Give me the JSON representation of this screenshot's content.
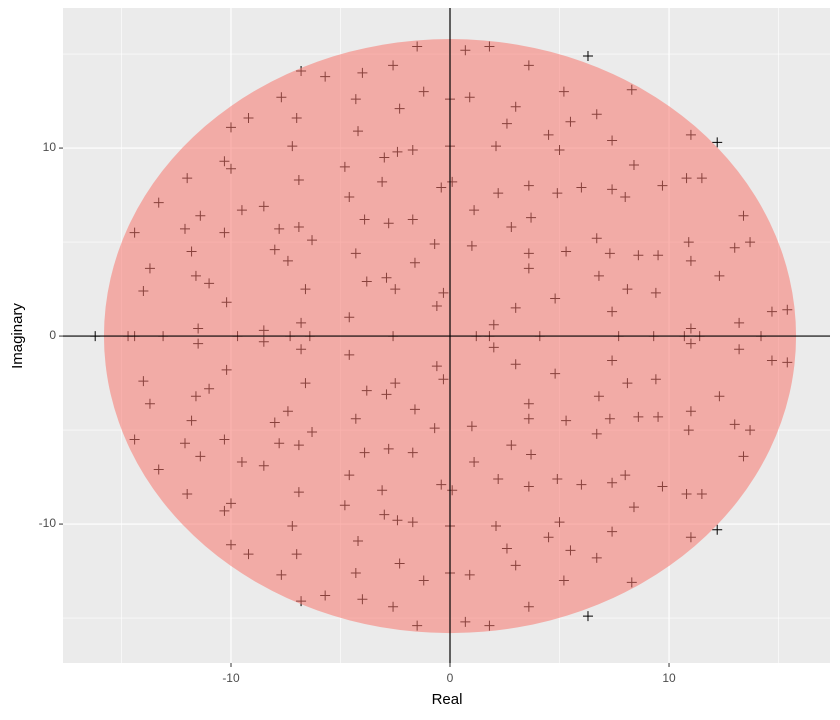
{
  "chart_data": {
    "type": "scatter",
    "x_label": "Real",
    "y_label": "Imaginary",
    "xlim": [
      -17.67,
      17.35
    ],
    "ylim": [
      -17.39,
      17.45
    ],
    "xticks": [
      -10,
      0,
      10
    ],
    "yticks": [
      -10,
      0,
      10
    ],
    "xminor": [
      -15,
      -5,
      5,
      15
    ],
    "yminor": [
      -15,
      -5,
      5,
      15
    ],
    "grid": true,
    "hline": 0,
    "vline": 0,
    "circle": {
      "radius": 15.8,
      "color": "#f8766d",
      "opacity": 0.55
    },
    "series": [
      {
        "color": "#000000",
        "x": [
          6.3,
          12.2,
          -1.5,
          0.7,
          1.8,
          -4.0,
          -6.8,
          -5.7,
          -2.6,
          3.6,
          -7.7,
          -4.3,
          -1.2,
          0,
          0.9,
          5.2,
          8.3,
          -7.0,
          -9.2,
          -10.0,
          -2.3,
          3.0,
          5.5,
          6.7,
          2.6,
          -4.2,
          4.5,
          7.4,
          11.0,
          -7.2,
          -1.7,
          -2.4,
          -3.0,
          0,
          2.1,
          5.0,
          -10.3,
          -10.0,
          -4.8,
          8.4,
          -12.0,
          -6.9,
          -3.1,
          -0.4,
          0.1,
          2.2,
          3.6,
          4.9,
          6.0,
          7.4,
          8.0,
          9.7,
          10.8,
          11.5,
          -13.3,
          -4.6,
          -8.5,
          -9.5,
          1.1,
          -11.4,
          13.4,
          -12.1,
          -10.3,
          -7.8,
          -6.9,
          -3.9,
          -2.8,
          -1.7,
          3.7,
          2.8,
          -14.4,
          -6.3,
          6.7,
          10.9,
          13.0,
          13.7,
          -0.7,
          1.0,
          -11.8,
          -8.0,
          -7.4,
          -4.3,
          3.6,
          5.3,
          7.3,
          8.6,
          9.5,
          11.0,
          12.3,
          -13.7,
          -11.6,
          -11.0,
          -3.8,
          -2.9,
          -1.6,
          3.6,
          6.8,
          -14.0,
          -6.6,
          -2.5,
          8.1,
          9.4,
          -0.3,
          4.8,
          -10.2,
          -0.6,
          3.0,
          7.4,
          14.7,
          15.4,
          -4.6,
          13.2,
          -6.8,
          2.0,
          -11.5,
          -8.5,
          11.0,
          6.3,
          12.2,
          -1.5,
          0.7,
          1.8,
          -4.0,
          -6.8,
          -5.7,
          -2.6,
          3.6,
          -7.7,
          -4.3,
          -1.2,
          0,
          0.9,
          5.2,
          8.3,
          -7.0,
          -9.2,
          -10.0,
          -2.3,
          3.0,
          5.5,
          6.7,
          2.6,
          -4.2,
          4.5,
          7.4,
          11.0,
          -7.2,
          -1.7,
          -2.4,
          -3.0,
          0,
          2.1,
          5.0,
          -10.3,
          -10.0,
          -4.8,
          8.4,
          -12.0,
          -6.9,
          -3.1,
          -0.4,
          0.1,
          2.2,
          3.6,
          4.9,
          6.0,
          7.4,
          8.0,
          9.7,
          10.8,
          11.5,
          -13.3,
          -4.6,
          -8.5,
          -9.5,
          1.1,
          -11.4,
          13.4,
          -12.1,
          -10.3,
          -7.8,
          -6.9,
          -3.9,
          -2.8,
          -1.7,
          3.7,
          2.8,
          -14.4,
          -6.3,
          6.7,
          10.9,
          13.0,
          13.7,
          -0.7,
          1.0,
          -11.8,
          -8.0,
          -7.4,
          -4.3,
          3.6,
          5.3,
          7.3,
          8.6,
          9.5,
          11.0,
          12.3,
          -13.7,
          -11.6,
          -11.0,
          -3.8,
          -2.9,
          -1.6,
          3.6,
          6.8,
          -14.0,
          -6.6,
          -2.5,
          8.1,
          9.4,
          -0.3,
          4.8,
          -10.2,
          -0.6,
          3.0,
          7.4,
          14.7,
          15.4,
          -4.6,
          13.2,
          -6.8,
          2.0,
          -11.5,
          -8.5,
          11.0,
          -16.2,
          -14.7,
          -14.4,
          -13.1,
          -9.7,
          -7.3,
          -6.4,
          -2.6,
          1.2,
          1.8,
          4.1,
          7.7,
          9.3,
          10.7,
          11.4,
          14.2
        ],
        "y": [
          14.9,
          10.3,
          15.4,
          15.2,
          15.4,
          14.0,
          14.1,
          13.8,
          14.4,
          14.4,
          12.7,
          12.6,
          13.0,
          12.6,
          12.7,
          13.0,
          13.1,
          11.6,
          11.6,
          11.1,
          12.1,
          12.2,
          11.4,
          11.8,
          11.3,
          10.9,
          10.7,
          10.4,
          10.7,
          10.1,
          9.9,
          9.8,
          9.5,
          10.1,
          10.1,
          9.9,
          9.3,
          8.9,
          9.0,
          9.1,
          8.4,
          8.3,
          8.2,
          7.9,
          8.2,
          7.6,
          8.0,
          7.6,
          7.9,
          7.8,
          7.4,
          8.0,
          8.4,
          8.4,
          7.1,
          7.4,
          6.9,
          6.7,
          6.7,
          6.4,
          6.4,
          5.7,
          5.5,
          5.7,
          5.8,
          6.2,
          6.0,
          6.2,
          6.3,
          5.8,
          5.5,
          5.1,
          5.2,
          5.0,
          4.7,
          5.0,
          4.9,
          4.8,
          4.5,
          4.6,
          4.0,
          4.4,
          4.4,
          4.5,
          4.4,
          4.3,
          4.3,
          4.0,
          3.2,
          3.6,
          3.2,
          2.8,
          2.9,
          3.1,
          3.9,
          3.6,
          3.2,
          2.4,
          2.5,
          2.5,
          2.5,
          2.3,
          2.3,
          2.0,
          1.8,
          1.6,
          1.5,
          1.3,
          1.3,
          1.4,
          1.0,
          0.7,
          0.7,
          0.6,
          0.4,
          0.3,
          0.4,
          -14.9,
          -10.3,
          -15.4,
          -15.2,
          -15.4,
          -14.0,
          -14.1,
          -13.8,
          -14.4,
          -14.4,
          -12.7,
          -12.6,
          -13.0,
          -12.6,
          -12.7,
          -13.0,
          -13.1,
          -11.6,
          -11.6,
          -11.1,
          -12.1,
          -12.2,
          -11.4,
          -11.8,
          -11.3,
          -10.9,
          -10.7,
          -10.4,
          -10.7,
          -10.1,
          -9.9,
          -9.8,
          -9.5,
          -10.1,
          -10.1,
          -9.9,
          -9.3,
          -8.9,
          -9.0,
          -9.1,
          -8.4,
          -8.3,
          -8.2,
          -7.9,
          -8.2,
          -7.6,
          -8.0,
          -7.6,
          -7.9,
          -7.8,
          -7.4,
          -8.0,
          -8.4,
          -8.4,
          -7.1,
          -7.4,
          -6.9,
          -6.7,
          -6.7,
          -6.4,
          -6.4,
          -5.7,
          -5.5,
          -5.7,
          -5.8,
          -6.2,
          -6.0,
          -6.2,
          -6.3,
          -5.8,
          -5.5,
          -5.1,
          -5.2,
          -5.0,
          -4.7,
          -5.0,
          -4.9,
          -4.8,
          -4.5,
          -4.6,
          -4.0,
          -4.4,
          -4.4,
          -4.5,
          -4.4,
          -4.3,
          -4.3,
          -4.0,
          -3.2,
          -3.6,
          -3.2,
          -2.8,
          -2.9,
          -3.1,
          -3.9,
          -3.6,
          -3.2,
          -2.4,
          -2.5,
          -2.5,
          -2.5,
          -2.3,
          -2.3,
          -2.0,
          -1.8,
          -1.6,
          -1.5,
          -1.3,
          -1.3,
          -1.4,
          -1.0,
          -0.7,
          -0.7,
          -0.6,
          -0.4,
          -0.3,
          -0.4,
          0,
          0,
          0,
          0,
          0,
          0,
          0,
          0,
          0,
          0,
          0,
          0,
          0,
          0,
          0,
          0
        ]
      }
    ]
  }
}
